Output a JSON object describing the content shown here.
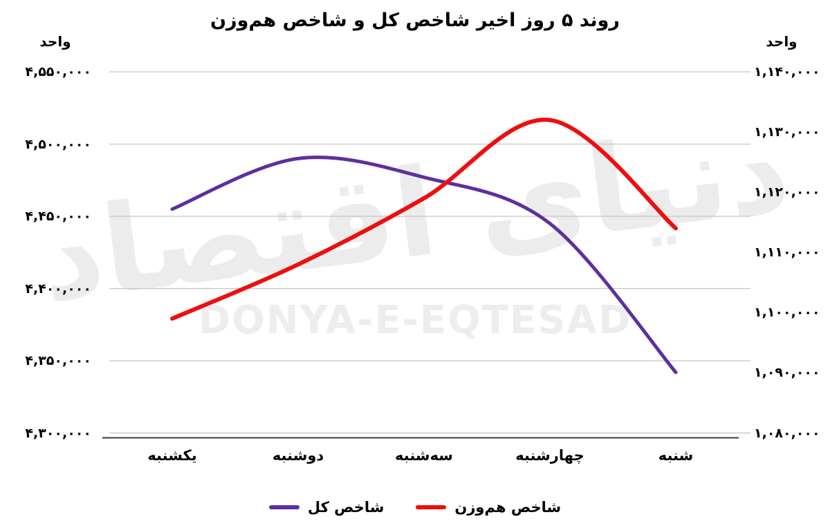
{
  "title": "روند ۵ روز اخیر شاخص کل و شاخص هم‌وزن",
  "watermark": {
    "fa": "دنیای اقتصاد",
    "en": "DONYA-E-EQTESAD"
  },
  "colors": {
    "total_index_line": "#5E2F9E",
    "equal_weight_line": "#EF0E0E",
    "gridline": "#c4c4c4",
    "axis_line": "#3a3a3a",
    "watermark": "#ececec"
  },
  "chart_data": {
    "type": "line",
    "title": "روند ۵ روز اخیر شاخص کل و شاخص هم‌وزن",
    "categories": [
      "یکشنبه",
      "دوشنبه",
      "سه‌شنبه",
      "چهارشنبه",
      "شنبه"
    ],
    "series": [
      {
        "name": "شاخص کل",
        "axis": "left",
        "color": "#5E2F9E",
        "values": [
          4455000,
          4490000,
          4477000,
          4445000,
          4342000
        ]
      },
      {
        "name": "شاخص هم‌وزن",
        "axis": "right",
        "color": "#EF0E0E",
        "values": [
          1099000,
          1108000,
          1119000,
          1132000,
          1114000
        ]
      }
    ],
    "left_axis": {
      "label": "واحد",
      "min": 4300000,
      "max": 4550000,
      "tick_step": 50000,
      "tick_labels": [
        "۴,۵۵۰,۰۰۰",
        "۴,۵۰۰,۰۰۰",
        "۴,۴۵۰,۰۰۰",
        "۴,۴۰۰,۰۰۰",
        "۴,۳۵۰,۰۰۰",
        "۴,۳۰۰,۰۰۰"
      ]
    },
    "right_axis": {
      "label": "واحد",
      "min": 1080000,
      "max": 1140000,
      "tick_step": 10000,
      "tick_labels": [
        "۱,۱۴۰,۰۰۰",
        "۱,۱۳۰,۰۰۰",
        "۱,۱۲۰,۰۰۰",
        "۱,۱۱۰,۰۰۰",
        "۱,۱۰۰,۰۰۰",
        "۱,۰۹۰,۰۰۰",
        "۱,۰۸۰,۰۰۰"
      ]
    },
    "grid": "horizontal",
    "legend_position": "bottom"
  }
}
